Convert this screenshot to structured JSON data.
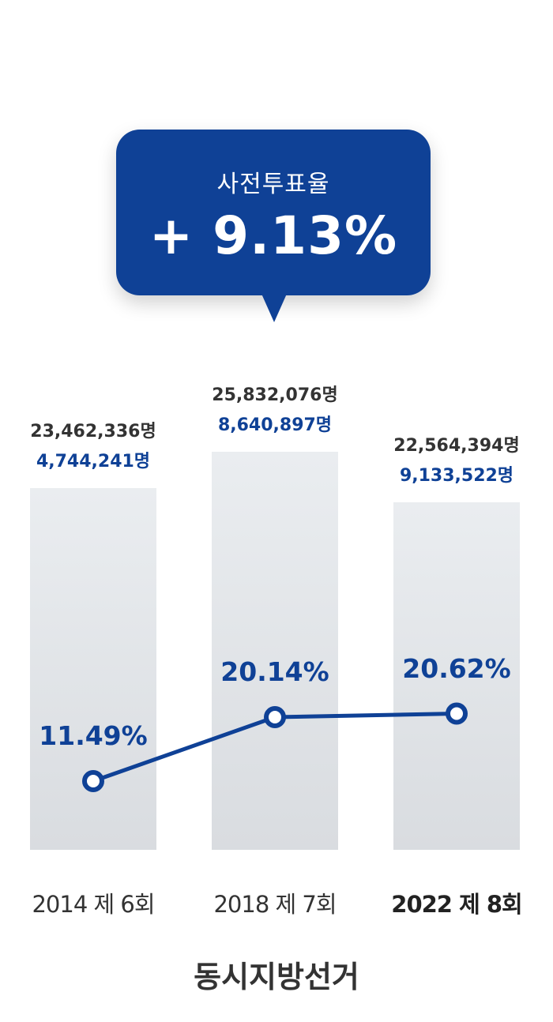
{
  "callout": {
    "label": "사전투표율",
    "value": "+ 9.13%"
  },
  "subtitle": "동시지방선거",
  "colors": {
    "accent": "#0f4196",
    "bar": "#e2e5e9",
    "text": "#333333"
  },
  "chart_data": {
    "type": "bar",
    "categories": [
      "2014 제 6회",
      "2018 제 7회",
      "2022 제 8회"
    ],
    "highlight_category": "2022 제 8회",
    "series": [
      {
        "name": "",
        "values": [
          23462336,
          25832076,
          22564394
        ],
        "labels": [
          "23,462,336명",
          "25,832,076명",
          "22,564,394명"
        ]
      },
      {
        "name": "",
        "values": [
          4744241,
          8640897,
          9133522
        ],
        "labels": [
          "4,744,241명",
          "8,640,897명",
          "9,133,522명"
        ]
      },
      {
        "name": "",
        "type": "line",
        "values": [
          11.49,
          20.14,
          20.62
        ],
        "labels": [
          "11.49%",
          "20.14%",
          "20.62%"
        ]
      }
    ]
  }
}
